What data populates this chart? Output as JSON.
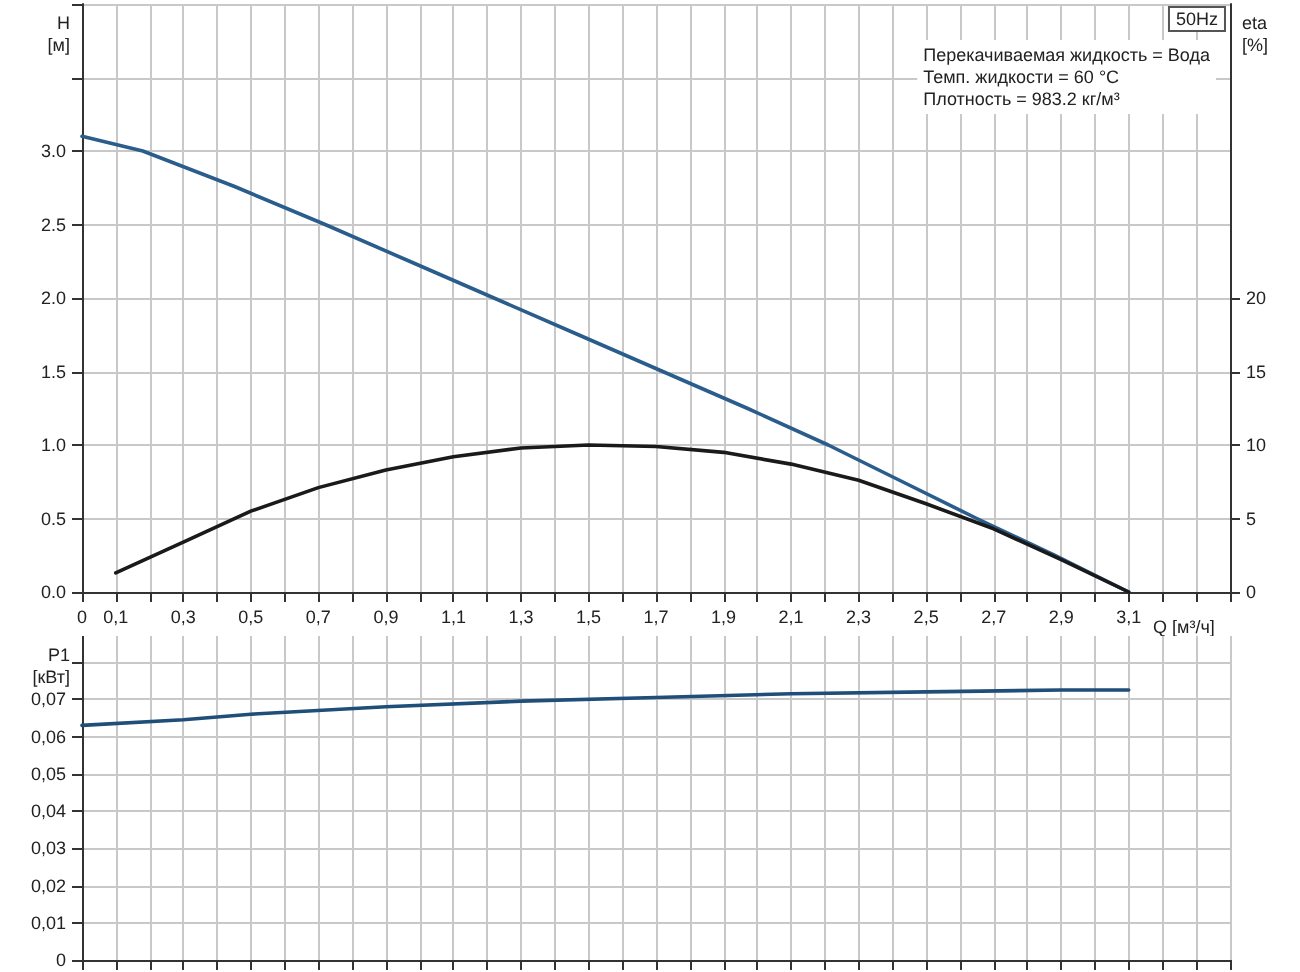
{
  "chart_data": [
    {
      "type": "line",
      "title": "50Hz",
      "xlabel": "Q [м³/ч]",
      "ylabel": "H\n[м]",
      "y2label": "eta\n[%]",
      "annotations": [
        "Перекачиваемая жидкость = Вода",
        "Темп. жидкости = 60 °C",
        "Плотность = 983.2 кг/м³"
      ],
      "xlim": [
        0,
        3.4
      ],
      "xticks": [
        {
          "value": 0,
          "label": "0"
        },
        {
          "value": 0.1,
          "label": "0,1"
        },
        {
          "value": 0.2,
          "label": null
        },
        {
          "value": 0.3,
          "label": "0,3"
        },
        {
          "value": 0.4,
          "label": null
        },
        {
          "value": 0.5,
          "label": "0,5"
        },
        {
          "value": 0.6,
          "label": null
        },
        {
          "value": 0.7,
          "label": "0,7"
        },
        {
          "value": 0.8,
          "label": null
        },
        {
          "value": 0.9,
          "label": "0,9"
        },
        {
          "value": 1.0,
          "label": null
        },
        {
          "value": 1.1,
          "label": "1,1"
        },
        {
          "value": 1.2,
          "label": null
        },
        {
          "value": 1.3,
          "label": "1,3"
        },
        {
          "value": 1.4,
          "label": null
        },
        {
          "value": 1.5,
          "label": "1,5"
        },
        {
          "value": 1.6,
          "label": null
        },
        {
          "value": 1.7,
          "label": "1,7"
        },
        {
          "value": 1.8,
          "label": null
        },
        {
          "value": 1.9,
          "label": "1,9"
        },
        {
          "value": 2.0,
          "label": null
        },
        {
          "value": 2.1,
          "label": "2,1"
        },
        {
          "value": 2.2,
          "label": null
        },
        {
          "value": 2.3,
          "label": "2,3"
        },
        {
          "value": 2.4,
          "label": null
        },
        {
          "value": 2.5,
          "label": "2,5"
        },
        {
          "value": 2.6,
          "label": null
        },
        {
          "value": 2.7,
          "label": "2,7"
        },
        {
          "value": 2.8,
          "label": null
        },
        {
          "value": 2.9,
          "label": "2,9"
        },
        {
          "value": 3.0,
          "label": null
        },
        {
          "value": 3.1,
          "label": "3,1"
        },
        {
          "value": 3.2,
          "label": null
        },
        {
          "value": 3.3,
          "label": null
        },
        {
          "value": 3.4,
          "label": null
        }
      ],
      "ylim": [
        0,
        4.0
      ],
      "yticks": [
        {
          "value": 0,
          "label": "0.0"
        },
        {
          "value": 0.5,
          "label": "0.5"
        },
        {
          "value": 1.0,
          "label": "1.0"
        },
        {
          "value": 1.5,
          "label": "1.5"
        },
        {
          "value": 2.0,
          "label": "2.0"
        },
        {
          "value": 2.5,
          "label": "2.5"
        },
        {
          "value": 3.0,
          "label": "3.0"
        },
        {
          "value": 3.5,
          "label": null
        },
        {
          "value": 4.0,
          "label": null
        }
      ],
      "y2lim": [
        0,
        40
      ],
      "y2ticks": [
        0,
        5,
        10,
        15,
        20
      ],
      "grid": true,
      "marker": "none",
      "series": [
        {
          "color": "#2b5d8c",
          "x": [
            0,
            0.18,
            0.45,
            0.72,
            0.97,
            1.22,
            1.47,
            1.72,
            1.97,
            2.21,
            2.43,
            2.65,
            2.88,
            3.1
          ],
          "values": [
            3.1,
            3.0,
            2.76,
            2.5,
            2.25,
            2.0,
            1.75,
            1.5,
            1.25,
            1.0,
            0.75,
            0.5,
            0.25,
            0
          ]
        },
        {
          "color": "#1a1a1a",
          "axis": "y2",
          "x": [
            0.1,
            0.3,
            0.5,
            0.7,
            0.9,
            1.1,
            1.3,
            1.5,
            1.7,
            1.9,
            2.1,
            2.3,
            2.5,
            2.7,
            2.9,
            3.1
          ],
          "values": [
            1.3,
            3.4,
            5.5,
            7.1,
            8.3,
            9.2,
            9.8,
            10.0,
            9.9,
            9.5,
            8.7,
            7.6,
            6.0,
            4.3,
            2.2,
            0
          ]
        }
      ]
    },
    {
      "type": "line",
      "ylabel": "P1\n[кВт]",
      "tick_labels": "y",
      "xlim": [
        0,
        3.4
      ],
      "xticks": [
        0,
        0.1,
        0.2,
        0.3,
        0.4,
        0.5,
        0.6,
        0.7,
        0.8,
        0.9,
        1.0,
        1.1,
        1.2,
        1.3,
        1.4,
        1.5,
        1.6,
        1.7,
        1.8,
        1.9,
        2.0,
        2.1,
        2.2,
        2.3,
        2.4,
        2.5,
        2.6,
        2.7,
        2.8,
        2.9,
        3.0,
        3.1,
        3.2,
        3.3,
        3.4
      ],
      "ylim": [
        0,
        0.087
      ],
      "yticks": [
        {
          "value": 0,
          "label": "0"
        },
        {
          "value": 0.01,
          "label": "0,01"
        },
        {
          "value": 0.02,
          "label": "0,02"
        },
        {
          "value": 0.03,
          "label": "0,03"
        },
        {
          "value": 0.04,
          "label": "0,04"
        },
        {
          "value": 0.05,
          "label": "0,05"
        },
        {
          "value": 0.06,
          "label": "0,06"
        },
        {
          "value": 0.07,
          "label": "0,07"
        },
        {
          "value": 0.08,
          "label": null
        }
      ],
      "grid": true,
      "marker": "none",
      "series": [
        {
          "color": "#1f4e79",
          "x": [
            0,
            0.3,
            0.5,
            0.9,
            1.3,
            1.7,
            2.1,
            2.5,
            2.9,
            3.1
          ],
          "values": [
            0.063,
            0.0645,
            0.066,
            0.068,
            0.0695,
            0.0705,
            0.0715,
            0.072,
            0.0725,
            0.0725
          ]
        }
      ]
    }
  ]
}
